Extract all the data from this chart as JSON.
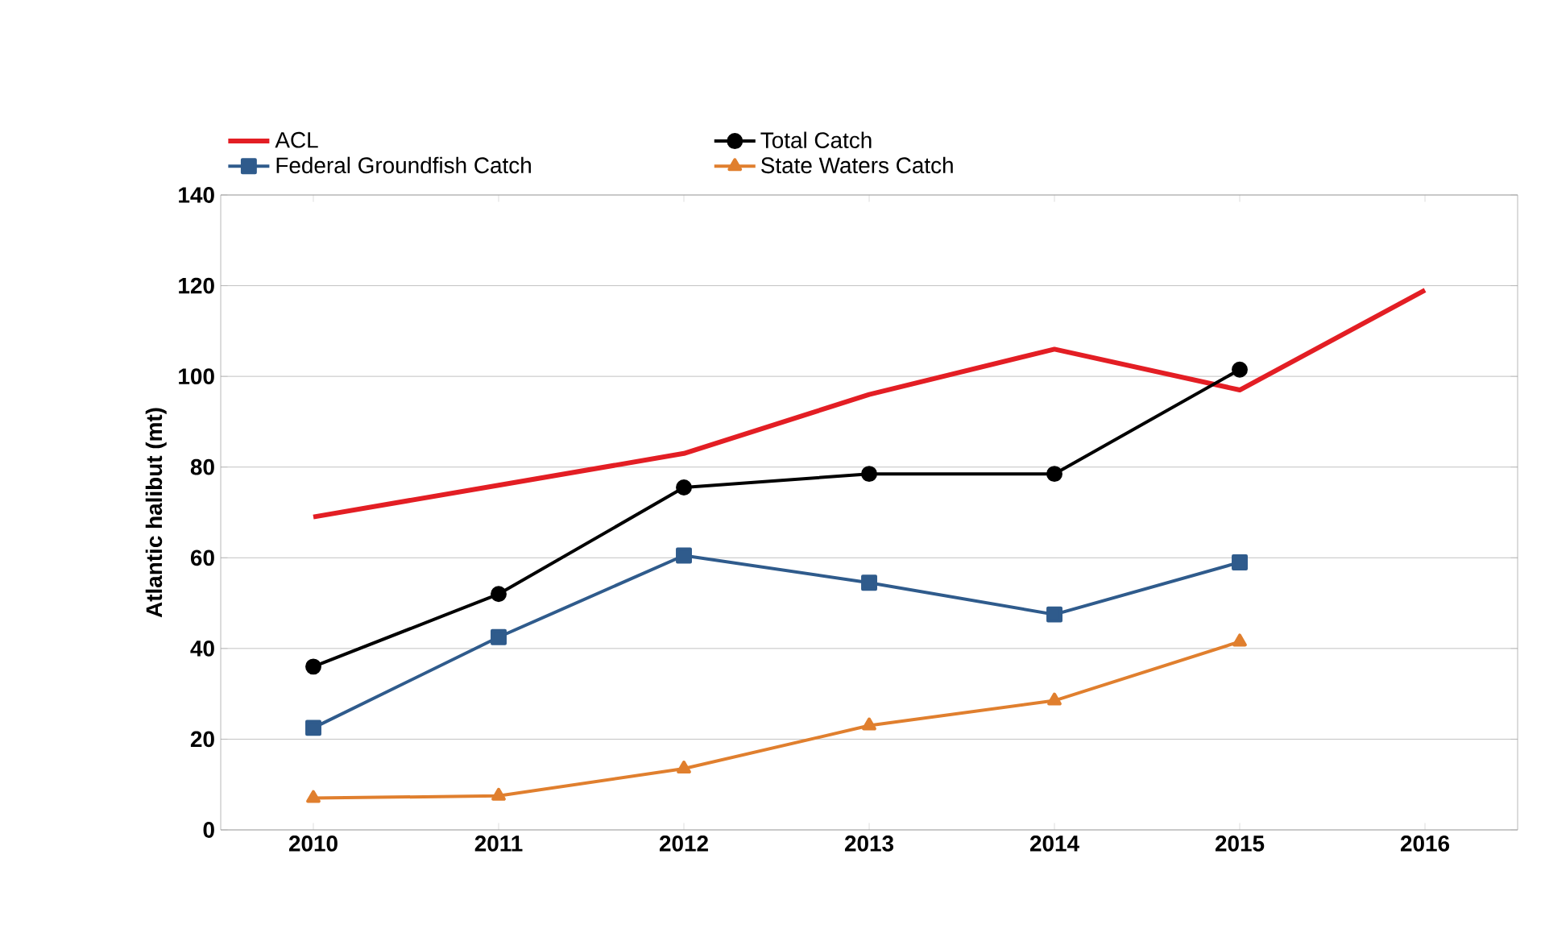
{
  "chart_data": {
    "type": "line",
    "ylabel": "Atlantic halibut (mt)",
    "categories": [
      "2010",
      "2011",
      "2012",
      "2013",
      "2014",
      "2015",
      "2016"
    ],
    "series": [
      {
        "name": "ACL",
        "color": "#e31e24",
        "marker": "none",
        "values": [
          69,
          76,
          83,
          96,
          106,
          97,
          119
        ]
      },
      {
        "name": "Total Catch",
        "color": "#000000",
        "marker": "circle",
        "values": [
          36,
          52,
          75.5,
          78.5,
          78.5,
          101.5,
          null
        ]
      },
      {
        "name": "Federal Groundfish Catch",
        "color": "#2f5b8c",
        "marker": "square",
        "values": [
          22.5,
          42.5,
          60.5,
          54.5,
          47.5,
          59,
          null
        ]
      },
      {
        "name": "State Waters Catch",
        "color": "#e07f2e",
        "marker": "triangle",
        "values": [
          7,
          7.5,
          13.5,
          23,
          28.5,
          41.5,
          null
        ]
      }
    ],
    "ylim": [
      0,
      140
    ],
    "yticks": [
      0,
      20,
      40,
      60,
      80,
      100,
      120,
      140
    ],
    "grid": "y",
    "legend": "top",
    "line_style": "solid"
  }
}
